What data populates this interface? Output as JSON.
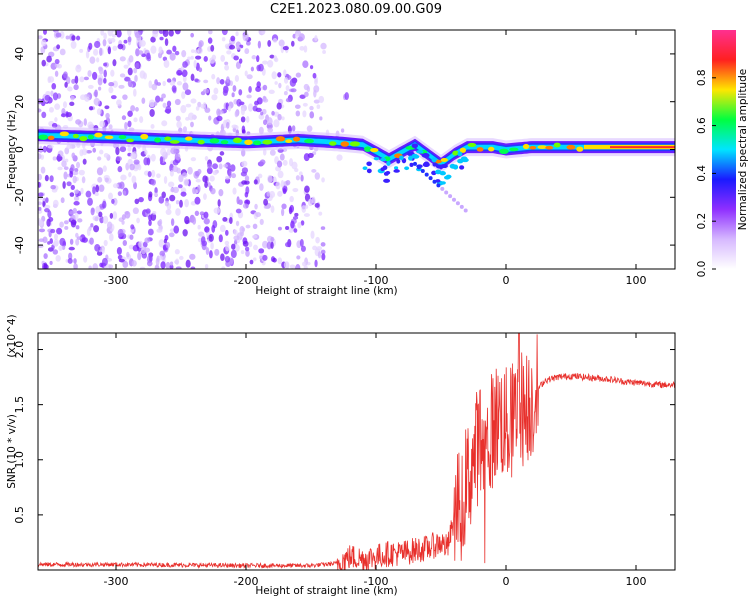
{
  "title": "C2E1.2023.080.09.00.G09",
  "chart_data": [
    {
      "type": "heatmap",
      "xlabel": "Height of straight line (km)",
      "ylabel": "Frequency (Hz)",
      "xlim": [
        -360,
        130
      ],
      "ylim": [
        -50,
        50
      ],
      "xticks": [
        -300,
        -200,
        -100,
        0,
        100
      ],
      "yticks": [
        -40,
        -20,
        0,
        20,
        40
      ],
      "colorbar": {
        "label": "Normalized spectral amplitude",
        "range": [
          0,
          1
        ],
        "ticks": [
          "0.0",
          "0.2",
          "0.4",
          "0.6",
          "0.8"
        ],
        "colors": [
          "#ffffff",
          "#d6b8ff",
          "#8f2fff",
          "#1a1aff",
          "#00e5ff",
          "#00ff40",
          "#ffe600",
          "#ff2020",
          "#ff3090"
        ]
      },
      "ridge": {
        "x": [
          -360,
          -300,
          -200,
          -160,
          -130,
          -110,
          -90,
          -70,
          -50,
          -40,
          -30,
          -10,
          0,
          20,
          60,
          100,
          130
        ],
        "y": [
          6,
          5,
          3,
          4,
          3,
          2,
          -4,
          2,
          -6,
          -2,
          1,
          1,
          0,
          1,
          1,
          1,
          1
        ]
      },
      "noise_region_x": [
        -360,
        -140
      ]
    },
    {
      "type": "line",
      "xlabel": "Height of straight line (km)",
      "ylabel": "SNR (10 * v/v)",
      "yscale_label": "(x10^4)",
      "xlim": [
        -360,
        130
      ],
      "ylim": [
        0,
        2.15
      ],
      "xticks": [
        -300,
        -200,
        -100,
        0,
        100
      ],
      "yticks": [
        "0.5",
        "1.0",
        "1.5",
        "2.0"
      ],
      "color": "#e8302c",
      "series": [
        {
          "x": [
            -360,
            -300,
            -200,
            -150,
            -130,
            -120,
            -110,
            -100,
            -90,
            -80,
            -70,
            -60,
            -50,
            -45,
            -40,
            -35,
            -30,
            -25,
            -20,
            -15,
            -10,
            -5,
            0,
            5,
            10,
            15,
            20,
            25,
            30,
            40,
            50,
            60,
            70,
            80,
            90,
            100,
            110,
            120,
            130
          ],
          "y": [
            0.05,
            0.05,
            0.04,
            0.04,
            0.06,
            0.12,
            0.1,
            0.12,
            0.15,
            0.15,
            0.18,
            0.2,
            0.25,
            0.2,
            0.45,
            0.6,
            0.8,
            1.0,
            1.2,
            1.1,
            1.3,
            1.4,
            1.3,
            1.35,
            1.5,
            1.45,
            1.55,
            1.65,
            1.72,
            1.75,
            1.76,
            1.75,
            1.74,
            1.73,
            1.71,
            1.7,
            1.69,
            1.68,
            1.68
          ]
        }
      ]
    }
  ]
}
